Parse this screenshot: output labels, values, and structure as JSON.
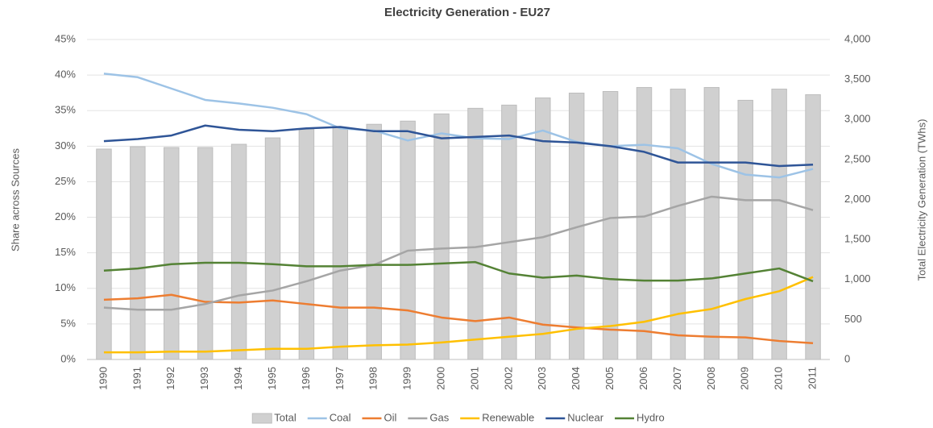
{
  "chart_data": {
    "type": "combo",
    "title": "Electricity Generation - EU27",
    "y_label": "Share across Sources",
    "y2_label": "Total Electricity Generation  (TWhs)",
    "categories": [
      "1990",
      "1991",
      "1992",
      "1993",
      "1994",
      "1995",
      "1996",
      "1997",
      "1998",
      "1999",
      "2000",
      "2001",
      "2002",
      "2003",
      "2004",
      "2005",
      "2006",
      "2007",
      "2008",
      "2009",
      "2010",
      "2011"
    ],
    "ylim": [
      0,
      45
    ],
    "yticks": [
      {
        "value": 0,
        "label": "0%"
      },
      {
        "value": 5,
        "label": "5%"
      },
      {
        "value": 10,
        "label": "10%"
      },
      {
        "value": 15,
        "label": "15%"
      },
      {
        "value": 20,
        "label": "20%"
      },
      {
        "value": 25,
        "label": "25%"
      },
      {
        "value": 30,
        "label": "30%"
      },
      {
        "value": 35,
        "label": "35%"
      },
      {
        "value": 40,
        "label": "40%"
      },
      {
        "value": 45,
        "label": "45%"
      }
    ],
    "y2lim": [
      0,
      4000
    ],
    "y2ticks": [
      0,
      500,
      {
        "value": 1000,
        "label": "1,000"
      },
      {
        "value": 1500,
        "label": "1,500"
      },
      {
        "value": 2000,
        "label": "2,000"
      },
      {
        "value": 2500,
        "label": "2,500"
      },
      {
        "value": 3000,
        "label": "3,000"
      },
      {
        "value": 3500,
        "label": "3,500"
      },
      {
        "value": 4000,
        "label": "4,000"
      }
    ],
    "grid": true,
    "legend": "bottom",
    "series": [
      {
        "name": "Total",
        "type": "bar",
        "axis": "y2",
        "color": "#d0d0d0",
        "values": [
          2630,
          2660,
          2650,
          2650,
          2690,
          2770,
          2880,
          2900,
          2940,
          2980,
          3070,
          3140,
          3180,
          3270,
          3330,
          3350,
          3400,
          3380,
          3400,
          3240,
          3380,
          3310
        ]
      },
      {
        "name": "Coal",
        "type": "line",
        "color": "#9dc3e6",
        "values": [
          40.2,
          39.7,
          38.1,
          36.5,
          36.0,
          35.4,
          34.5,
          32.5,
          32.2,
          30.8,
          31.8,
          31.1,
          31.0,
          32.2,
          30.6,
          30.0,
          30.2,
          29.7,
          27.5,
          26.0,
          25.6,
          26.8
        ]
      },
      {
        "name": "Oil",
        "type": "line",
        "color": "#ed7d31",
        "values": [
          8.4,
          8.6,
          9.1,
          8.1,
          8.0,
          8.3,
          7.8,
          7.3,
          7.3,
          6.9,
          5.9,
          5.4,
          5.9,
          4.9,
          4.5,
          4.2,
          4.0,
          3.4,
          3.2,
          3.1,
          2.6,
          2.3
        ]
      },
      {
        "name": "Gas",
        "type": "line",
        "color": "#a5a5a5",
        "values": [
          7.3,
          7.0,
          7.0,
          7.8,
          9.0,
          9.7,
          11.0,
          12.5,
          13.3,
          15.3,
          15.6,
          15.8,
          16.5,
          17.2,
          18.6,
          19.9,
          20.1,
          21.6,
          22.9,
          22.4,
          22.4,
          21.0
        ]
      },
      {
        "name": "Renewable",
        "type": "line",
        "color": "#ffc000",
        "values": [
          1.0,
          1.0,
          1.1,
          1.1,
          1.3,
          1.5,
          1.5,
          1.8,
          2.0,
          2.1,
          2.4,
          2.8,
          3.2,
          3.6,
          4.3,
          4.7,
          5.3,
          6.4,
          7.1,
          8.5,
          9.6,
          11.6
        ]
      },
      {
        "name": "Nuclear",
        "type": "line",
        "color": "#2f5597",
        "values": [
          30.7,
          31.0,
          31.5,
          32.9,
          32.3,
          32.1,
          32.5,
          32.7,
          32.1,
          32.1,
          31.1,
          31.3,
          31.5,
          30.7,
          30.5,
          30.0,
          29.2,
          27.7,
          27.7,
          27.7,
          27.2,
          27.4
        ]
      },
      {
        "name": "Hydro",
        "type": "line",
        "color": "#548235",
        "values": [
          12.5,
          12.8,
          13.4,
          13.6,
          13.6,
          13.4,
          13.1,
          13.1,
          13.3,
          13.3,
          13.5,
          13.7,
          12.1,
          11.5,
          11.8,
          11.3,
          11.1,
          11.1,
          11.4,
          12.1,
          12.8,
          11.0
        ]
      }
    ]
  }
}
